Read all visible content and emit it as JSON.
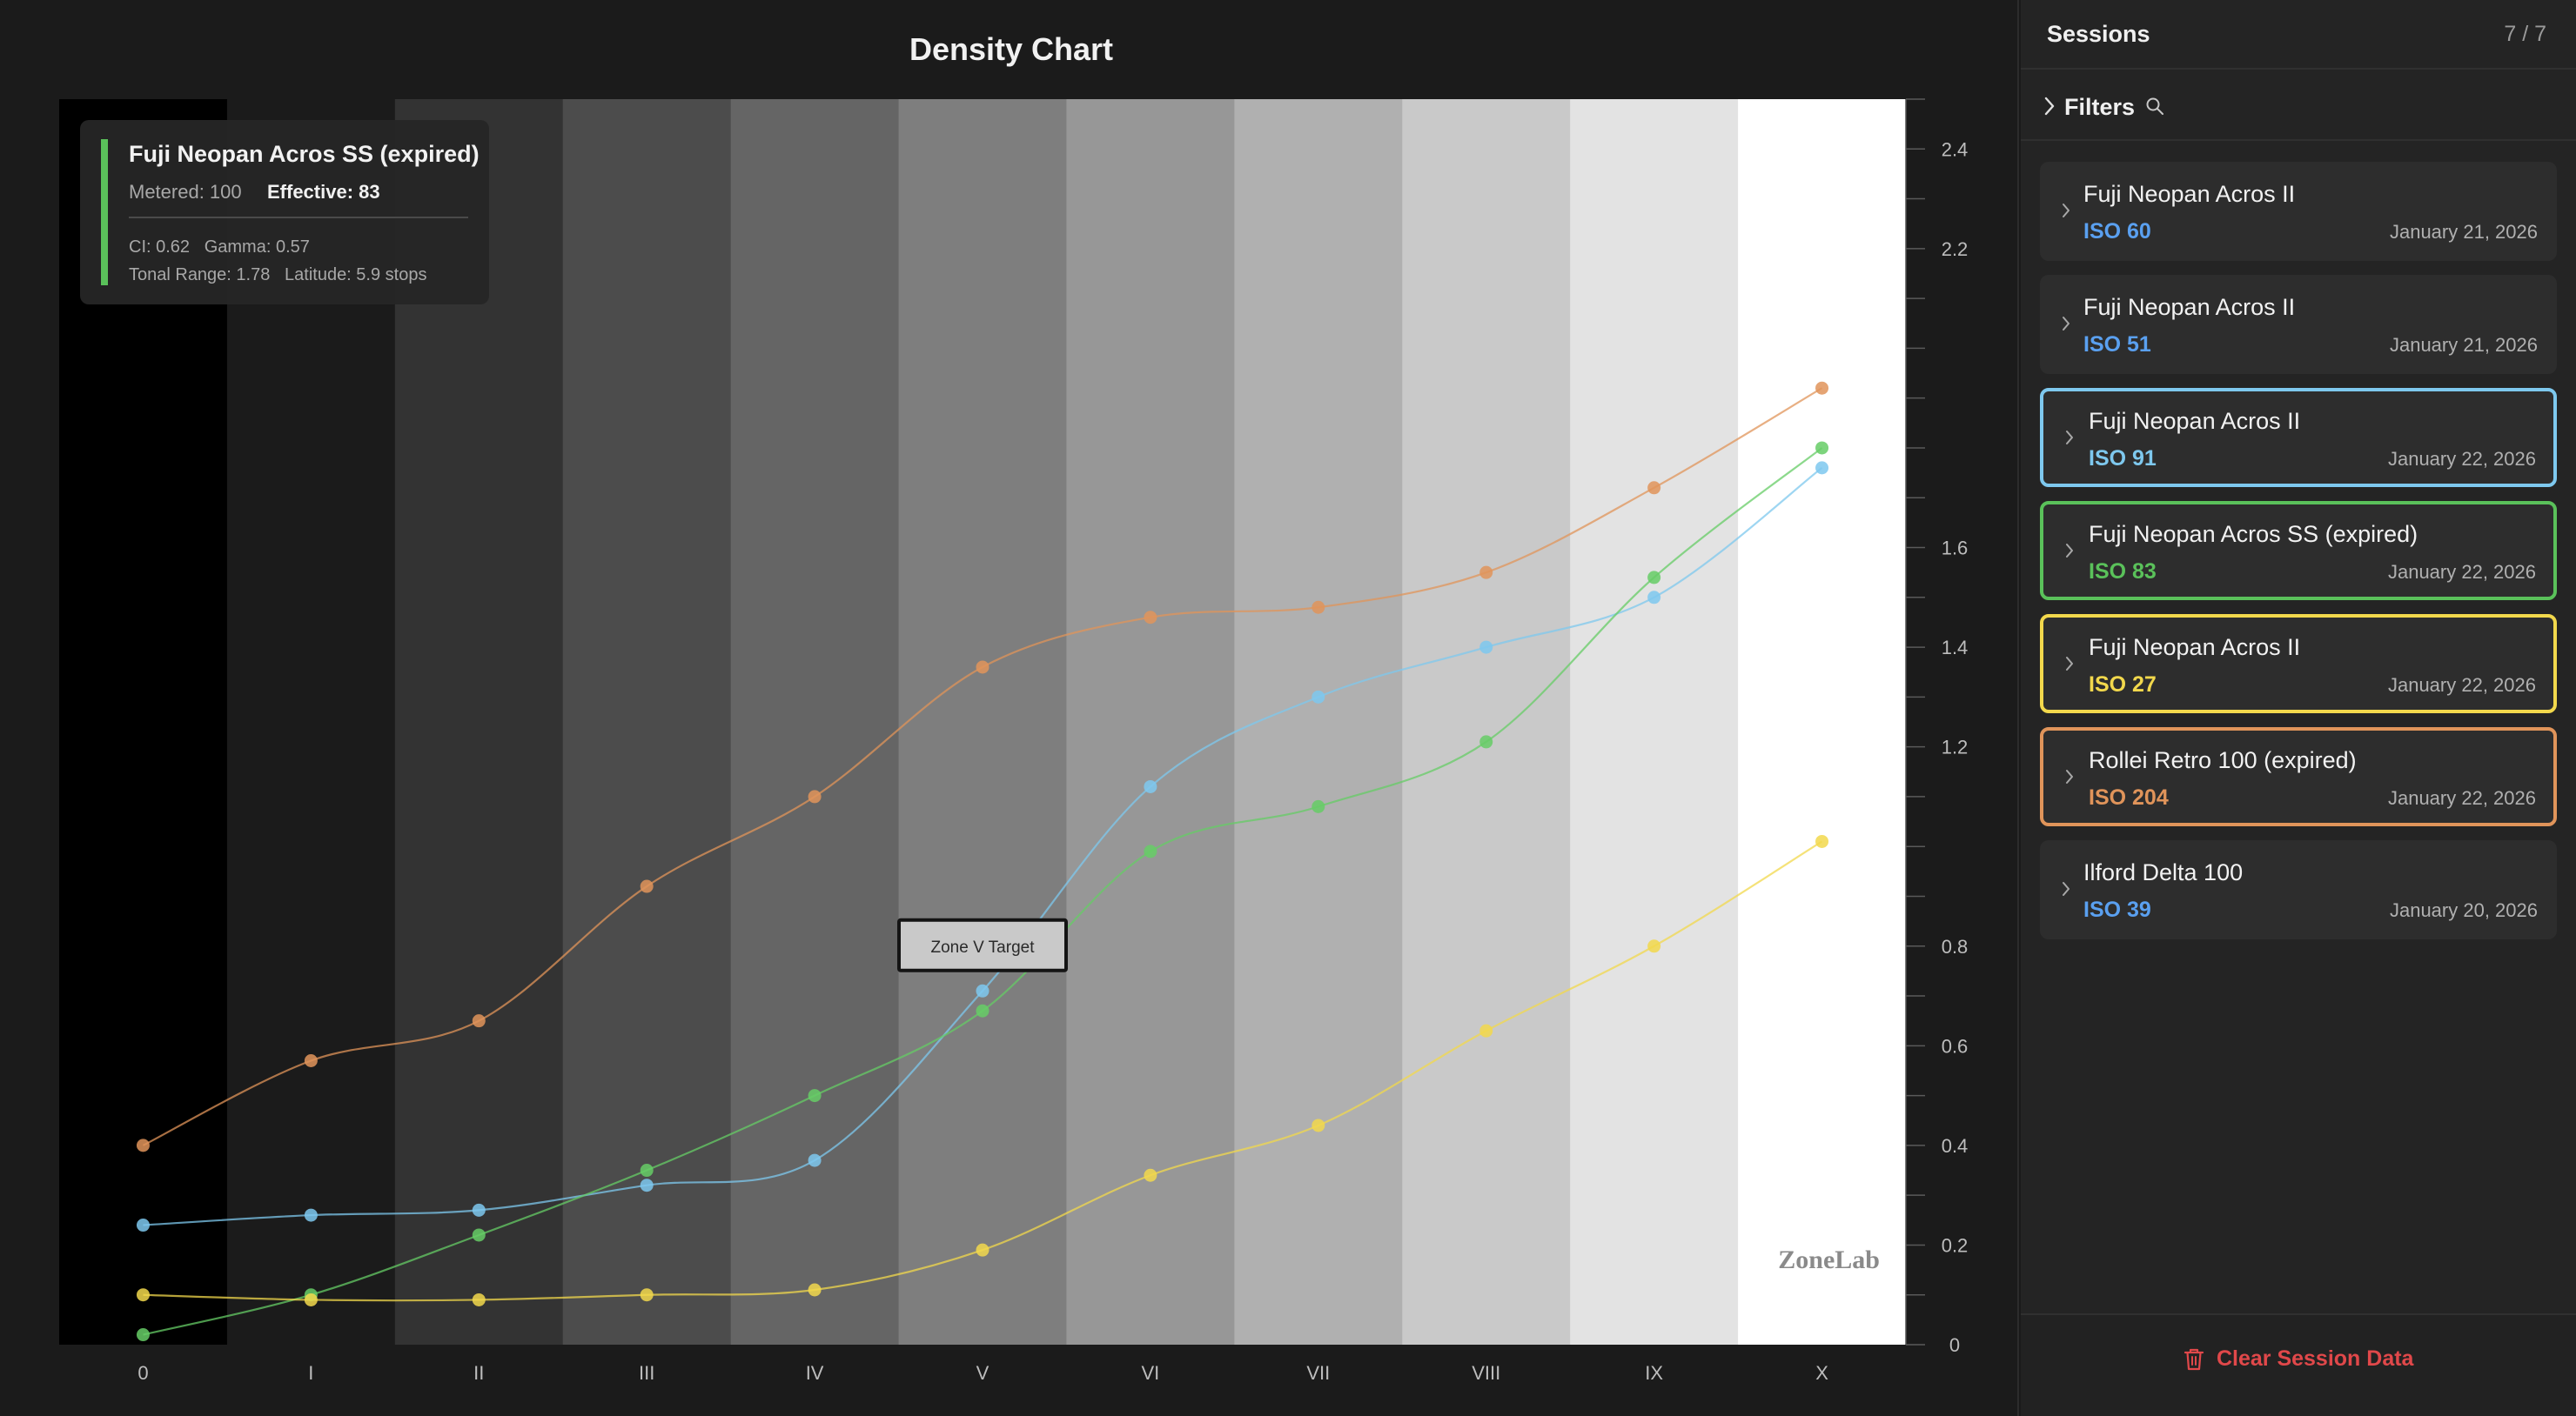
{
  "chart": {
    "title": "Density Chart",
    "watermark": "ZoneLab",
    "target_label": "Zone V Target"
  },
  "tooltip": {
    "title": "Fuji Neopan Acros SS (expired)",
    "metered": "Metered: 100",
    "effective": "Effective: 83",
    "line1": "CI: 0.62   Gamma: 0.57",
    "line2": "Tonal Range: 1.78   Latitude: 5.9 stops",
    "accent": "#5ac15a"
  },
  "chart_data": {
    "type": "line",
    "title": "Density Chart",
    "xlabel": "",
    "ylabel": "",
    "categories": [
      "0",
      "I",
      "II",
      "III",
      "IV",
      "V",
      "VI",
      "VII",
      "VIII",
      "IX",
      "X"
    ],
    "ylim": [
      0,
      2.5
    ],
    "y_ticks": [
      "0",
      "0.2",
      "0.4",
      "0.6",
      "0.8",
      "1.2",
      "1.4",
      "1.6",
      "2.2",
      "2.4"
    ],
    "series": [
      {
        "color": "#e0945a",
        "values": [
          0.4,
          0.57,
          0.65,
          0.92,
          1.1,
          1.36,
          1.46,
          1.48,
          1.55,
          1.72,
          1.92
        ]
      },
      {
        "color": "#7ec8ee",
        "values": [
          0.24,
          0.26,
          0.27,
          0.32,
          0.37,
          0.71,
          1.12,
          1.3,
          1.4,
          1.5,
          1.76
        ]
      },
      {
        "color": "#66cc66",
        "values": [
          0.02,
          0.1,
          0.22,
          0.35,
          0.5,
          0.67,
          0.99,
          1.08,
          1.21,
          1.54,
          1.8
        ]
      },
      {
        "color": "#f2d84c",
        "values": [
          0.1,
          0.09,
          0.09,
          0.1,
          0.11,
          0.19,
          0.34,
          0.44,
          0.63,
          0.8,
          1.01
        ]
      }
    ],
    "zone_backgrounds": [
      "#000000",
      "#1b1b1b",
      "#333333",
      "#4c4c4c",
      "#656565",
      "#7e7e7e",
      "#979797",
      "#b0b0b0",
      "#c9c9c9",
      "#e3e3e3",
      "#ffffff"
    ],
    "target": {
      "zone": "V",
      "density": 0.8
    },
    "grid": false
  },
  "sidebar": {
    "title": "Sessions",
    "count": "7 / 7",
    "filters_label": "Filters",
    "clear_label": "Clear Session Data",
    "sessions": [
      {
        "name": "Fuji Neopan Acros II",
        "iso": "ISO 60",
        "date": "January 21, 2026",
        "iso_color": "#5aa0f0",
        "outline": ""
      },
      {
        "name": "Fuji Neopan Acros II",
        "iso": "ISO 51",
        "date": "January 21, 2026",
        "iso_color": "#5aa0f0",
        "outline": ""
      },
      {
        "name": "Fuji Neopan Acros II",
        "iso": "ISO 91",
        "date": "January 22, 2026",
        "iso_color": "#7ec8ee",
        "outline": "#7ec8ee"
      },
      {
        "name": "Fuji Neopan Acros SS (expired)",
        "iso": "ISO 83",
        "date": "January 22, 2026",
        "iso_color": "#5ac15a",
        "outline": "#5ac15a"
      },
      {
        "name": "Fuji Neopan Acros II",
        "iso": "ISO 27",
        "date": "January 22, 2026",
        "iso_color": "#f2d84c",
        "outline": "#f2d84c"
      },
      {
        "name": "Rollei Retro 100 (expired)",
        "iso": "ISO 204",
        "date": "January 22, 2026",
        "iso_color": "#e0945a",
        "outline": "#e0945a"
      },
      {
        "name": "Ilford Delta 100",
        "iso": "ISO 39",
        "date": "January 20, 2026",
        "iso_color": "#5aa0f0",
        "outline": ""
      }
    ]
  }
}
